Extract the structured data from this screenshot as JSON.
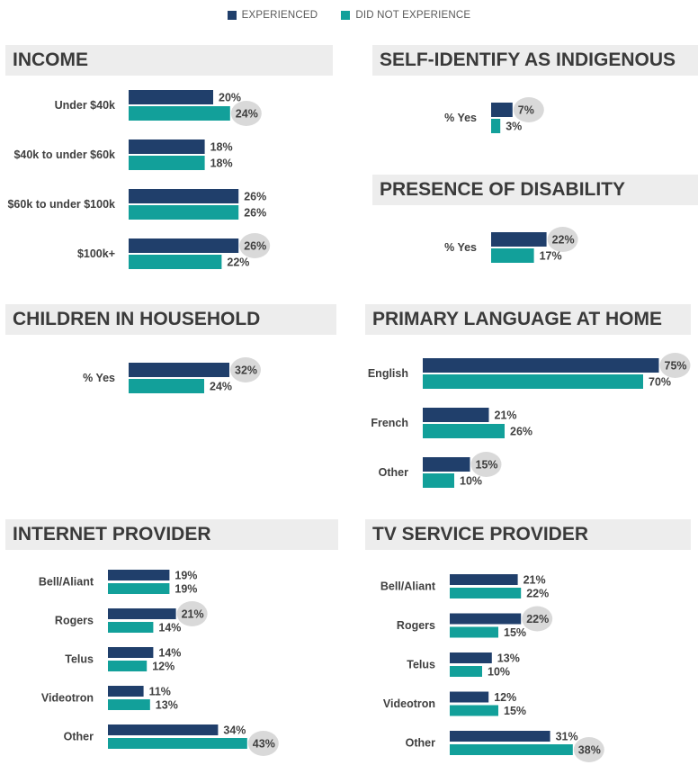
{
  "legend": {
    "experienced": "EXPERIENCED",
    "not_experienced": "DID NOT EXPERIENCE"
  },
  "colors": {
    "experienced": "#203f6b",
    "not_experienced": "#12a09a",
    "header_bg": "#ededed",
    "highlight": "#d9d9d9"
  },
  "chart_data": [
    {
      "type": "bar",
      "title": "INCOME",
      "categories": [
        "Under $40k",
        "$40k to under $60k",
        "$60k to under $100k",
        "$100k+"
      ],
      "series": [
        {
          "name": "EXPERIENCED",
          "values": [
            20,
            18,
            26,
            26
          ]
        },
        {
          "name": "DID NOT EXPERIENCE",
          "values": [
            24,
            18,
            26,
            22
          ]
        }
      ],
      "highlighted": [
        [
          1,
          0
        ],
        [
          0,
          3
        ]
      ],
      "value_suffix": "%"
    },
    {
      "type": "bar",
      "title": "SELF-IDENTIFY AS INDIGENOUS",
      "categories": [
        "% Yes"
      ],
      "series": [
        {
          "name": "EXPERIENCED",
          "values": [
            7
          ]
        },
        {
          "name": "DID NOT EXPERIENCE",
          "values": [
            3
          ]
        }
      ],
      "highlighted": [
        [
          0,
          0
        ]
      ],
      "value_suffix": "%"
    },
    {
      "type": "bar",
      "title": "PRESENCE OF DISABILITY",
      "categories": [
        "% Yes"
      ],
      "series": [
        {
          "name": "EXPERIENCED",
          "values": [
            22
          ]
        },
        {
          "name": "DID NOT EXPERIENCE",
          "values": [
            17
          ]
        }
      ],
      "highlighted": [
        [
          0,
          0
        ]
      ],
      "value_suffix": "%"
    },
    {
      "type": "bar",
      "title": "CHILDREN IN HOUSEHOLD",
      "categories": [
        "% Yes"
      ],
      "series": [
        {
          "name": "EXPERIENCED",
          "values": [
            32
          ]
        },
        {
          "name": "DID NOT EXPERIENCE",
          "values": [
            24
          ]
        }
      ],
      "highlighted": [
        [
          0,
          0
        ]
      ],
      "value_suffix": "%"
    },
    {
      "type": "bar",
      "title": "PRIMARY LANGUAGE AT HOME",
      "categories": [
        "English",
        "French",
        "Other"
      ],
      "series": [
        {
          "name": "EXPERIENCED",
          "values": [
            75,
            21,
            15
          ]
        },
        {
          "name": "DID NOT EXPERIENCE",
          "values": [
            70,
            26,
            10
          ]
        }
      ],
      "highlighted": [
        [
          0,
          0
        ],
        [
          0,
          2
        ]
      ],
      "value_suffix": "%"
    },
    {
      "type": "bar",
      "title": "INTERNET PROVIDER",
      "categories": [
        "Bell/Aliant",
        "Rogers",
        "Telus",
        "Videotron",
        "Other"
      ],
      "series": [
        {
          "name": "EXPERIENCED",
          "values": [
            19,
            21,
            14,
            11,
            34
          ]
        },
        {
          "name": "DID NOT EXPERIENCE",
          "values": [
            19,
            14,
            12,
            13,
            43
          ]
        }
      ],
      "highlighted": [
        [
          0,
          1
        ],
        [
          1,
          4
        ]
      ],
      "value_suffix": "%"
    },
    {
      "type": "bar",
      "title": "TV SERVICE PROVIDER",
      "categories": [
        "Bell/Aliant",
        "Rogers",
        "Telus",
        "Videotron",
        "Other"
      ],
      "series": [
        {
          "name": "EXPERIENCED",
          "values": [
            21,
            22,
            13,
            12,
            31
          ]
        },
        {
          "name": "DID NOT EXPERIENCE",
          "values": [
            22,
            15,
            10,
            15,
            38
          ]
        }
      ],
      "highlighted": [
        [
          0,
          1
        ],
        [
          1,
          4
        ]
      ],
      "value_suffix": "%"
    }
  ]
}
